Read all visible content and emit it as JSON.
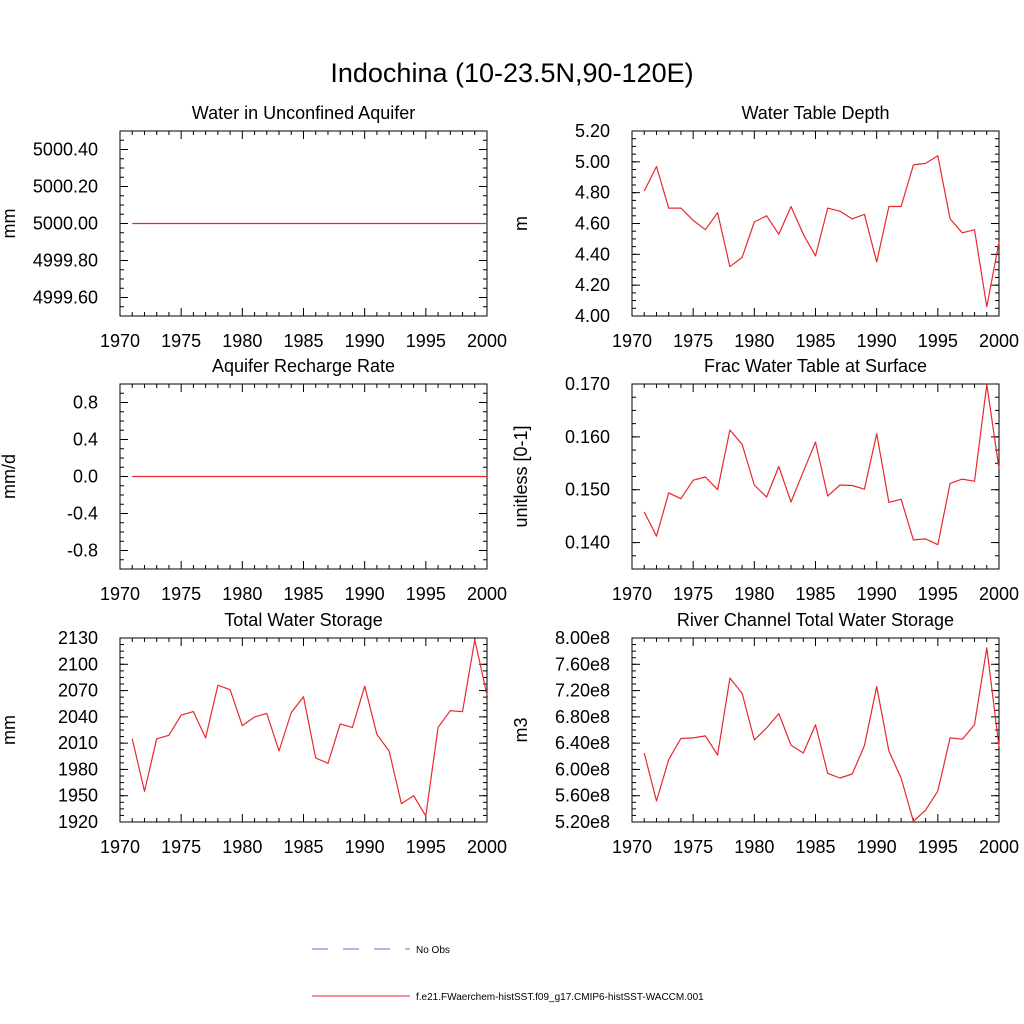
{
  "figure_title": "Indochina (10-23.5N,90-120E)",
  "legend": {
    "entries": [
      {
        "label": "No Obs",
        "color": "#6b6bd6",
        "style": "dashed"
      },
      {
        "label": "f.e21.FWaerchem-histSST.f09_g17.CMIP6-histSST-WACCM.001",
        "color": "#e8282e",
        "style": "solid"
      }
    ]
  },
  "chart_data": [
    {
      "type": "line",
      "title": "Water in Unconfined Aquifer",
      "ylabel": "mm",
      "xlim": [
        1970,
        2000
      ],
      "ylim": [
        4999.5,
        5000.5
      ],
      "xticks": [
        "1970",
        "1975",
        "1980",
        "1985",
        "1990",
        "1995",
        "2000"
      ],
      "yticks": [
        "4999.60",
        "4999.80",
        "5000.00",
        "5000.20",
        "5000.40"
      ],
      "x": [
        1971,
        1972,
        1973,
        1974,
        1975,
        1976,
        1977,
        1978,
        1979,
        1980,
        1981,
        1982,
        1983,
        1984,
        1985,
        1986,
        1987,
        1988,
        1989,
        1990,
        1991,
        1992,
        1993,
        1994,
        1995,
        1996,
        1997,
        1998,
        1999,
        2000
      ],
      "series": [
        {
          "color": "#e8282e",
          "values": [
            5000,
            5000,
            5000,
            5000,
            5000,
            5000,
            5000,
            5000,
            5000,
            5000,
            5000,
            5000,
            5000,
            5000,
            5000,
            5000,
            5000,
            5000,
            5000,
            5000,
            5000,
            5000,
            5000,
            5000,
            5000,
            5000,
            5000,
            5000,
            5000,
            5000
          ]
        }
      ]
    },
    {
      "type": "line",
      "title": "Water Table Depth",
      "ylabel": "m",
      "xlim": [
        1970,
        2000
      ],
      "ylim": [
        4.0,
        5.2
      ],
      "xticks": [
        "1970",
        "1975",
        "1980",
        "1985",
        "1990",
        "1995",
        "2000"
      ],
      "yticks": [
        "4.00",
        "4.20",
        "4.40",
        "4.60",
        "4.80",
        "5.00",
        "5.20"
      ],
      "x": [
        1971,
        1972,
        1973,
        1974,
        1975,
        1976,
        1977,
        1978,
        1979,
        1980,
        1981,
        1982,
        1983,
        1984,
        1985,
        1986,
        1987,
        1988,
        1989,
        1990,
        1991,
        1992,
        1993,
        1994,
        1995,
        1996,
        1997,
        1998,
        1999,
        2000
      ],
      "series": [
        {
          "color": "#e8282e",
          "values": [
            4.81,
            4.97,
            4.7,
            4.7,
            4.62,
            4.56,
            4.67,
            4.32,
            4.38,
            4.61,
            4.65,
            4.53,
            4.71,
            4.53,
            4.39,
            4.7,
            4.68,
            4.63,
            4.66,
            4.35,
            4.71,
            4.71,
            4.98,
            4.99,
            5.04,
            4.63,
            4.54,
            4.56,
            4.06,
            4.48
          ]
        }
      ]
    },
    {
      "type": "line",
      "title": "Aquifer Recharge Rate",
      "ylabel": "mm/d",
      "xlim": [
        1970,
        2000
      ],
      "ylim": [
        -1.0,
        1.0
      ],
      "xticks": [
        "1970",
        "1975",
        "1980",
        "1985",
        "1990",
        "1995",
        "2000"
      ],
      "yticks": [
        "-0.8",
        "-0.4",
        "0.0",
        "0.4",
        "0.8"
      ],
      "x": [
        1971,
        1972,
        1973,
        1974,
        1975,
        1976,
        1977,
        1978,
        1979,
        1980,
        1981,
        1982,
        1983,
        1984,
        1985,
        1986,
        1987,
        1988,
        1989,
        1990,
        1991,
        1992,
        1993,
        1994,
        1995,
        1996,
        1997,
        1998,
        1999,
        2000
      ],
      "series": [
        {
          "color": "#e8282e",
          "values": [
            0,
            0,
            0,
            0,
            0,
            0,
            0,
            0,
            0,
            0,
            0,
            0,
            0,
            0,
            0,
            0,
            0,
            0,
            0,
            0,
            0,
            0,
            0,
            0,
            0,
            0,
            0,
            0,
            0,
            0
          ]
        }
      ]
    },
    {
      "type": "line",
      "title": "Frac Water Table at Surface",
      "ylabel": "unitless [0-1]",
      "xlim": [
        1970,
        2000
      ],
      "ylim": [
        0.135,
        0.17
      ],
      "xticks": [
        "1970",
        "1975",
        "1980",
        "1985",
        "1990",
        "1995",
        "2000"
      ],
      "yticks": [
        "0.140",
        "0.150",
        "0.160",
        "0.170"
      ],
      "x": [
        1971,
        1972,
        1973,
        1974,
        1975,
        1976,
        1977,
        1978,
        1979,
        1980,
        1981,
        1982,
        1983,
        1984,
        1985,
        1986,
        1987,
        1988,
        1989,
        1990,
        1991,
        1992,
        1993,
        1994,
        1995,
        1996,
        1997,
        1998,
        1999,
        2000
      ],
      "series": [
        {
          "color": "#e8282e",
          "values": [
            0.1458,
            0.1412,
            0.1494,
            0.1483,
            0.1518,
            0.1524,
            0.15,
            0.1613,
            0.1586,
            0.1509,
            0.1486,
            0.1544,
            0.1477,
            0.1534,
            0.159,
            0.1488,
            0.1509,
            0.1508,
            0.1501,
            0.1606,
            0.1476,
            0.1482,
            0.1405,
            0.1407,
            0.1396,
            0.1512,
            0.152,
            0.1516,
            0.1699,
            0.154
          ]
        }
      ]
    },
    {
      "type": "line",
      "title": "Total Water Storage",
      "ylabel": "mm",
      "xlim": [
        1970,
        2000
      ],
      "ylim": [
        1920,
        2130
      ],
      "xticks": [
        "1970",
        "1975",
        "1980",
        "1985",
        "1990",
        "1995",
        "2000"
      ],
      "yticks": [
        "1920",
        "1950",
        "1980",
        "2010",
        "2040",
        "2070",
        "2100",
        "2130"
      ],
      "x": [
        1971,
        1972,
        1973,
        1974,
        1975,
        1976,
        1977,
        1978,
        1979,
        1980,
        1981,
        1982,
        1983,
        1984,
        1985,
        1986,
        1987,
        1988,
        1989,
        1990,
        1991,
        1992,
        1993,
        1994,
        1995,
        1996,
        1997,
        1998,
        1999,
        2000
      ],
      "series": [
        {
          "color": "#e8282e",
          "values": [
            2015,
            1955,
            2015,
            2019,
            2042,
            2046,
            2016,
            2076,
            2071,
            2030,
            2040,
            2044,
            2001,
            2045,
            2063,
            1993,
            1987,
            2032,
            2028,
            2075,
            2020,
            2001,
            1941,
            1950,
            1927,
            2028,
            2047,
            2046,
            2128,
            2065
          ]
        }
      ]
    },
    {
      "type": "line",
      "title": "River Channel Total Water Storage",
      "ylabel": "m3",
      "xlim": [
        1970,
        2000
      ],
      "ylim": [
        520000000.0,
        800000000.0
      ],
      "xticks": [
        "1970",
        "1975",
        "1980",
        "1985",
        "1990",
        "1995",
        "2000"
      ],
      "yticks": [
        "5.20e8",
        "5.60e8",
        "6.00e8",
        "6.40e8",
        "6.80e8",
        "7.20e8",
        "7.60e8",
        "8.00e8"
      ],
      "x": [
        1971,
        1972,
        1973,
        1974,
        1975,
        1976,
        1977,
        1978,
        1979,
        1980,
        1981,
        1982,
        1983,
        1984,
        1985,
        1986,
        1987,
        1988,
        1989,
        1990,
        1991,
        1992,
        1993,
        1994,
        1995,
        1996,
        1997,
        1998,
        1999,
        2000
      ],
      "series": [
        {
          "color": "#e8282e",
          "values": [
            625000000.0,
            552000000.0,
            615000000.0,
            647000000.0,
            648000000.0,
            651000000.0,
            622000000.0,
            739000000.0,
            716000000.0,
            645000000.0,
            663000000.0,
            685000000.0,
            637000000.0,
            625000000.0,
            668000000.0,
            594000000.0,
            587000000.0,
            593000000.0,
            636000000.0,
            726000000.0,
            628000000.0,
            587000000.0,
            521000000.0,
            538000000.0,
            567000000.0,
            648000000.0,
            646000000.0,
            668000000.0,
            785000000.0,
            635000000.0
          ]
        }
      ]
    }
  ]
}
